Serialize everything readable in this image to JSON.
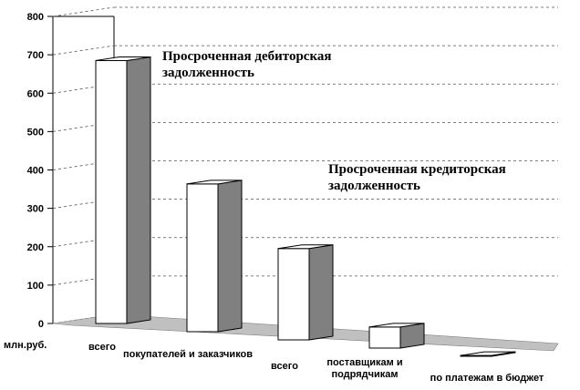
{
  "chart_data": {
    "type": "bar",
    "unit_label": "млн.руб.",
    "ylim": [
      0,
      800
    ],
    "y_ticks": [
      "0",
      "100",
      "200",
      "300",
      "400",
      "500",
      "600",
      "700",
      "800"
    ],
    "grid": true,
    "categories": [
      {
        "label_lines": [
          "всего"
        ],
        "value": 685
      },
      {
        "label_lines": [
          "покупателей и заказчиков"
        ],
        "value": 385
      },
      {
        "label_lines": [
          "всего"
        ],
        "value": 238
      },
      {
        "label_lines": [
          "поставщикам и",
          "подрядчикам"
        ],
        "value": 55
      },
      {
        "label_lines": [
          "по платежам в бюджет"
        ],
        "value": 2
      }
    ],
    "annotations": [
      {
        "lines": [
          "Просроченная дебиторская",
          "задолженность"
        ]
      },
      {
        "lines": [
          "Просроченная кредиторская",
          "задолженность"
        ]
      }
    ],
    "colors": {
      "bar_front": "#ffffff",
      "bar_side": "#808080",
      "bar_top": "#ffffff",
      "floor": "#c0c0c0",
      "grid": "#000000"
    }
  }
}
